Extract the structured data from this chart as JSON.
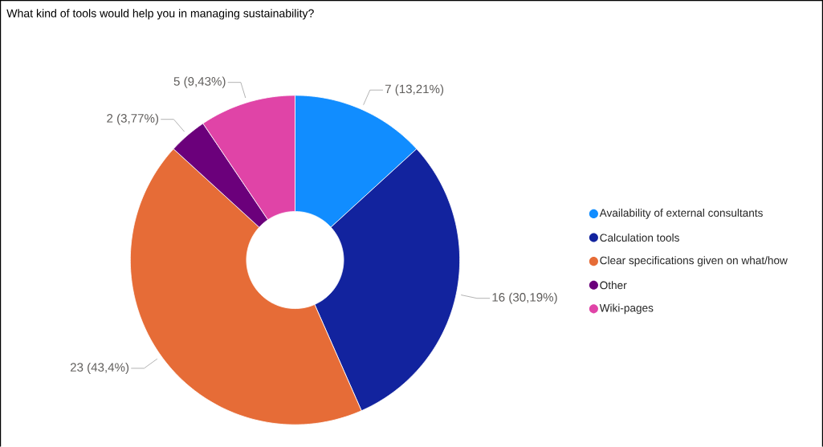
{
  "chart_data": {
    "type": "donut",
    "title": "What kind of tools would help you in managing sustainability?",
    "categories": [
      "Availability of external consultants",
      "Calculation tools",
      "Clear specifications given on what/how",
      "Other",
      "Wiki-pages"
    ],
    "values": [
      7,
      16,
      23,
      2,
      5
    ],
    "colors": [
      "#118dff",
      "#12239e",
      "#e66c37",
      "#6b007b",
      "#e044a7"
    ],
    "value_labels": [
      "7 (13,21%)",
      "16 (30,19%)",
      "23 (43,4%)",
      "2 (3,77%)",
      "5 (9,43%)"
    ],
    "legend": "right"
  }
}
